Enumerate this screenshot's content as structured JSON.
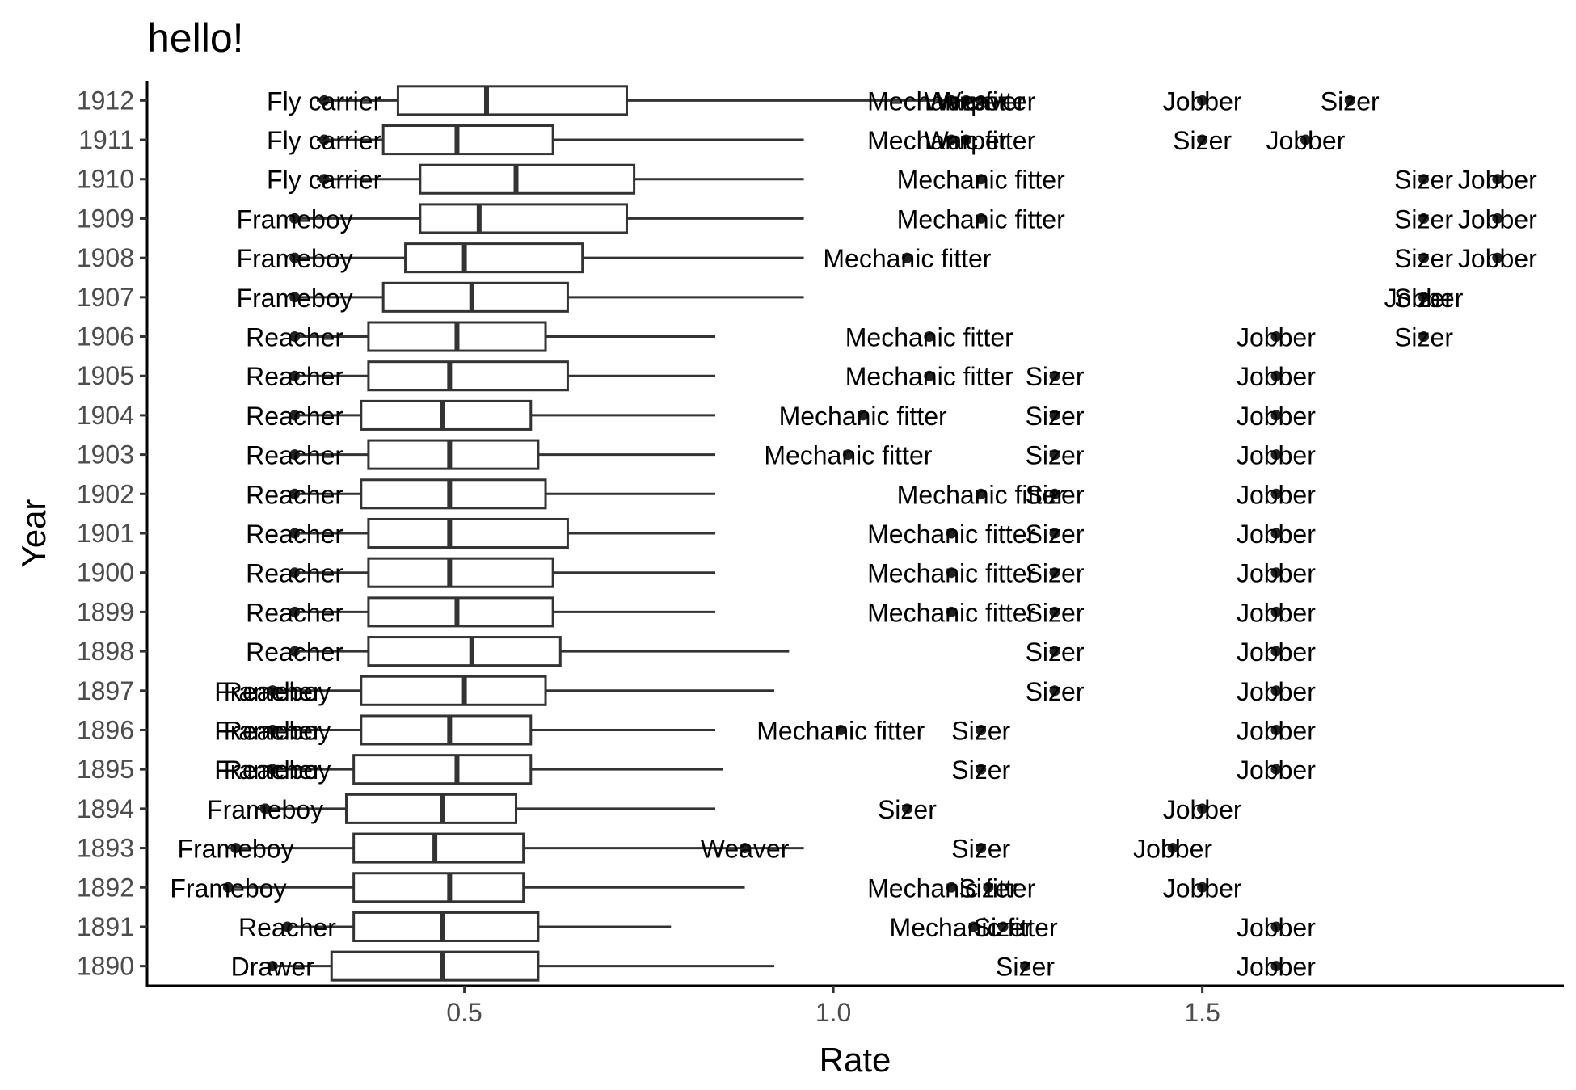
{
  "chart_data": {
    "type": "boxplot",
    "title": "hello!",
    "xlabel": "Rate",
    "ylabel": "Year",
    "orientation": "horizontal",
    "xlim": [
      0.07,
      1.99
    ],
    "x_ticks": [
      0.5,
      1.0,
      1.5
    ],
    "x_tick_labels": [
      "0.5",
      "1.0",
      "1.5"
    ],
    "grid": false,
    "colors": {
      "box_line": "#333333",
      "point": "#222222",
      "axis": "#000000",
      "tick_label": "#4d4d4d"
    },
    "categories": [
      "1890",
      "1891",
      "1892",
      "1893",
      "1894",
      "1895",
      "1896",
      "1897",
      "1898",
      "1899",
      "1900",
      "1901",
      "1902",
      "1903",
      "1904",
      "1905",
      "1906",
      "1907",
      "1908",
      "1909",
      "1910",
      "1911",
      "1912"
    ],
    "boxes": [
      {
        "year": "1890",
        "whisker_low": 0.24,
        "q1": 0.32,
        "median": 0.47,
        "q3": 0.6,
        "whisker_high": 0.92
      },
      {
        "year": "1891",
        "whisker_low": 0.26,
        "q1": 0.35,
        "median": 0.47,
        "q3": 0.6,
        "whisker_high": 0.78
      },
      {
        "year": "1892",
        "whisker_low": 0.18,
        "q1": 0.35,
        "median": 0.48,
        "q3": 0.58,
        "whisker_high": 0.88
      },
      {
        "year": "1893",
        "whisker_low": 0.18,
        "q1": 0.35,
        "median": 0.46,
        "q3": 0.58,
        "whisker_high": 0.96
      },
      {
        "year": "1894",
        "whisker_low": 0.22,
        "q1": 0.34,
        "median": 0.47,
        "q3": 0.57,
        "whisker_high": 0.84
      },
      {
        "year": "1895",
        "whisker_low": 0.24,
        "q1": 0.35,
        "median": 0.49,
        "q3": 0.59,
        "whisker_high": 0.85
      },
      {
        "year": "1896",
        "whisker_low": 0.24,
        "q1": 0.36,
        "median": 0.48,
        "q3": 0.59,
        "whisker_high": 0.84
      },
      {
        "year": "1897",
        "whisker_low": 0.24,
        "q1": 0.36,
        "median": 0.5,
        "q3": 0.61,
        "whisker_high": 0.92
      },
      {
        "year": "1898",
        "whisker_low": 0.27,
        "q1": 0.37,
        "median": 0.51,
        "q3": 0.63,
        "whisker_high": 0.94
      },
      {
        "year": "1899",
        "whisker_low": 0.27,
        "q1": 0.37,
        "median": 0.49,
        "q3": 0.62,
        "whisker_high": 0.84
      },
      {
        "year": "1900",
        "whisker_low": 0.27,
        "q1": 0.37,
        "median": 0.48,
        "q3": 0.62,
        "whisker_high": 0.84
      },
      {
        "year": "1901",
        "whisker_low": 0.27,
        "q1": 0.37,
        "median": 0.48,
        "q3": 0.64,
        "whisker_high": 0.84
      },
      {
        "year": "1902",
        "whisker_low": 0.27,
        "q1": 0.36,
        "median": 0.48,
        "q3": 0.61,
        "whisker_high": 0.84
      },
      {
        "year": "1903",
        "whisker_low": 0.27,
        "q1": 0.37,
        "median": 0.48,
        "q3": 0.6,
        "whisker_high": 0.84
      },
      {
        "year": "1904",
        "whisker_low": 0.27,
        "q1": 0.36,
        "median": 0.47,
        "q3": 0.59,
        "whisker_high": 0.84
      },
      {
        "year": "1905",
        "whisker_low": 0.27,
        "q1": 0.37,
        "median": 0.48,
        "q3": 0.64,
        "whisker_high": 0.84
      },
      {
        "year": "1906",
        "whisker_low": 0.27,
        "q1": 0.37,
        "median": 0.49,
        "q3": 0.61,
        "whisker_high": 0.84
      },
      {
        "year": "1907",
        "whisker_low": 0.27,
        "q1": 0.39,
        "median": 0.51,
        "q3": 0.64,
        "whisker_high": 0.96
      },
      {
        "year": "1908",
        "whisker_low": 0.27,
        "q1": 0.42,
        "median": 0.5,
        "q3": 0.66,
        "whisker_high": 0.96
      },
      {
        "year": "1909",
        "whisker_low": 0.27,
        "q1": 0.44,
        "median": 0.52,
        "q3": 0.72,
        "whisker_high": 0.96
      },
      {
        "year": "1910",
        "whisker_low": 0.3,
        "q1": 0.44,
        "median": 0.57,
        "q3": 0.73,
        "whisker_high": 0.96
      },
      {
        "year": "1911",
        "whisker_low": 0.3,
        "q1": 0.39,
        "median": 0.49,
        "q3": 0.62,
        "whisker_high": 0.96
      },
      {
        "year": "1912",
        "whisker_low": 0.3,
        "q1": 0.41,
        "median": 0.53,
        "q3": 0.72,
        "whisker_high": 1.2
      }
    ],
    "points": [
      {
        "year": "1890",
        "x": 1.26,
        "label": "Sizer"
      },
      {
        "year": "1890",
        "x": 1.6,
        "label": "Jobber"
      },
      {
        "year": "1890",
        "x": 0.24,
        "label": "Drawer"
      },
      {
        "year": "1891",
        "x": 1.19,
        "label": "Mechanic fitter"
      },
      {
        "year": "1891",
        "x": 1.23,
        "label": "Sizer"
      },
      {
        "year": "1891",
        "x": 1.6,
        "label": "Jobber"
      },
      {
        "year": "1891",
        "x": 0.26,
        "label": "Reacher"
      },
      {
        "year": "1892",
        "x": 1.16,
        "label": "Mechanic fitter"
      },
      {
        "year": "1892",
        "x": 1.21,
        "label": "Sizer"
      },
      {
        "year": "1892",
        "x": 1.5,
        "label": "Jobber"
      },
      {
        "year": "1892",
        "x": 0.18,
        "label": "Frameboy"
      },
      {
        "year": "1893",
        "x": 0.88,
        "label": "Weaver"
      },
      {
        "year": "1893",
        "x": 1.2,
        "label": "Sizer"
      },
      {
        "year": "1893",
        "x": 1.46,
        "label": "Jobber"
      },
      {
        "year": "1893",
        "x": 0.19,
        "label": "Frameboy"
      },
      {
        "year": "1894",
        "x": 1.1,
        "label": "Sizer"
      },
      {
        "year": "1894",
        "x": 1.5,
        "label": "Jobber"
      },
      {
        "year": "1894",
        "x": 0.23,
        "label": "Frameboy"
      },
      {
        "year": "1895",
        "x": 1.2,
        "label": "Sizer"
      },
      {
        "year": "1895",
        "x": 1.6,
        "label": "Jobber"
      },
      {
        "year": "1895",
        "x": 0.24,
        "label": "Frameboy"
      },
      {
        "year": "1895",
        "x": 0.24,
        "label": "Reacher"
      },
      {
        "year": "1896",
        "x": 1.01,
        "label": "Mechanic fitter"
      },
      {
        "year": "1896",
        "x": 1.2,
        "label": "Sizer"
      },
      {
        "year": "1896",
        "x": 1.6,
        "label": "Jobber"
      },
      {
        "year": "1896",
        "x": 0.24,
        "label": "Frameboy"
      },
      {
        "year": "1896",
        "x": 0.24,
        "label": "Reacher"
      },
      {
        "year": "1897",
        "x": 1.3,
        "label": "Sizer"
      },
      {
        "year": "1897",
        "x": 1.6,
        "label": "Jobber"
      },
      {
        "year": "1897",
        "x": 0.24,
        "label": "Frameboy"
      },
      {
        "year": "1897",
        "x": 0.24,
        "label": "Reacher"
      },
      {
        "year": "1898",
        "x": 1.3,
        "label": "Sizer"
      },
      {
        "year": "1898",
        "x": 1.6,
        "label": "Jobber"
      },
      {
        "year": "1898",
        "x": 0.27,
        "label": "Reacher"
      },
      {
        "year": "1899",
        "x": 1.16,
        "label": "Mechanic fitter"
      },
      {
        "year": "1899",
        "x": 1.3,
        "label": "Sizer"
      },
      {
        "year": "1899",
        "x": 1.6,
        "label": "Jobber"
      },
      {
        "year": "1899",
        "x": 0.27,
        "label": "Reacher"
      },
      {
        "year": "1900",
        "x": 1.16,
        "label": "Mechanic fitter"
      },
      {
        "year": "1900",
        "x": 1.3,
        "label": "Sizer"
      },
      {
        "year": "1900",
        "x": 1.6,
        "label": "Jobber"
      },
      {
        "year": "1900",
        "x": 0.27,
        "label": "Reacher"
      },
      {
        "year": "1901",
        "x": 1.16,
        "label": "Mechanic fitter"
      },
      {
        "year": "1901",
        "x": 1.3,
        "label": "Sizer"
      },
      {
        "year": "1901",
        "x": 1.6,
        "label": "Jobber"
      },
      {
        "year": "1901",
        "x": 0.27,
        "label": "Reacher"
      },
      {
        "year": "1902",
        "x": 1.2,
        "label": "Mechanic fitter"
      },
      {
        "year": "1902",
        "x": 1.3,
        "label": "Sizer"
      },
      {
        "year": "1902",
        "x": 1.6,
        "label": "Jobber"
      },
      {
        "year": "1902",
        "x": 0.27,
        "label": "Reacher"
      },
      {
        "year": "1903",
        "x": 1.02,
        "label": "Mechanic fitter"
      },
      {
        "year": "1903",
        "x": 1.3,
        "label": "Sizer"
      },
      {
        "year": "1903",
        "x": 1.6,
        "label": "Jobber"
      },
      {
        "year": "1903",
        "x": 0.27,
        "label": "Reacher"
      },
      {
        "year": "1904",
        "x": 1.04,
        "label": "Mechanic fitter"
      },
      {
        "year": "1904",
        "x": 1.3,
        "label": "Sizer"
      },
      {
        "year": "1904",
        "x": 1.6,
        "label": "Jobber"
      },
      {
        "year": "1904",
        "x": 0.27,
        "label": "Reacher"
      },
      {
        "year": "1905",
        "x": 1.13,
        "label": "Mechanic fitter"
      },
      {
        "year": "1905",
        "x": 1.3,
        "label": "Sizer"
      },
      {
        "year": "1905",
        "x": 1.6,
        "label": "Jobber"
      },
      {
        "year": "1905",
        "x": 0.27,
        "label": "Reacher"
      },
      {
        "year": "1906",
        "x": 1.13,
        "label": "Mechanic fitter"
      },
      {
        "year": "1906",
        "x": 1.6,
        "label": "Jobber"
      },
      {
        "year": "1906",
        "x": 1.8,
        "label": "Sizer"
      },
      {
        "year": "1906",
        "x": 0.27,
        "label": "Reacher"
      },
      {
        "year": "1907",
        "x": 1.8,
        "label": "Sizer"
      },
      {
        "year": "1907",
        "x": 1.8,
        "label": "Jobber"
      },
      {
        "year": "1907",
        "x": 0.27,
        "label": "Frameboy"
      },
      {
        "year": "1908",
        "x": 1.1,
        "label": "Mechanic fitter"
      },
      {
        "year": "1908",
        "x": 1.8,
        "label": "Sizer"
      },
      {
        "year": "1908",
        "x": 1.9,
        "label": "Jobber"
      },
      {
        "year": "1908",
        "x": 0.27,
        "label": "Frameboy"
      },
      {
        "year": "1909",
        "x": 1.2,
        "label": "Mechanic fitter"
      },
      {
        "year": "1909",
        "x": 1.8,
        "label": "Sizer"
      },
      {
        "year": "1909",
        "x": 1.9,
        "label": "Jobber"
      },
      {
        "year": "1909",
        "x": 0.27,
        "label": "Frameboy"
      },
      {
        "year": "1910",
        "x": 1.2,
        "label": "Mechanic fitter"
      },
      {
        "year": "1910",
        "x": 1.8,
        "label": "Sizer"
      },
      {
        "year": "1910",
        "x": 1.9,
        "label": "Jobber"
      },
      {
        "year": "1910",
        "x": 0.31,
        "label": "Fly carrier"
      },
      {
        "year": "1911",
        "x": 1.16,
        "label": "Mechanic fitter"
      },
      {
        "year": "1911",
        "x": 1.18,
        "label": "Warper"
      },
      {
        "year": "1911",
        "x": 1.5,
        "label": "Sizer"
      },
      {
        "year": "1911",
        "x": 1.64,
        "label": "Jobber"
      },
      {
        "year": "1911",
        "x": 0.31,
        "label": "Fly carrier"
      },
      {
        "year": "1912",
        "x": 1.16,
        "label": "Mechanic fitter"
      },
      {
        "year": "1912",
        "x": 1.18,
        "label": "Warper"
      },
      {
        "year": "1912",
        "x": 1.2,
        "label": "Weaver"
      },
      {
        "year": "1912",
        "x": 1.5,
        "label": "Jobber"
      },
      {
        "year": "1912",
        "x": 1.7,
        "label": "Sizer"
      },
      {
        "year": "1912",
        "x": 0.31,
        "label": "Fly carrier"
      }
    ]
  }
}
